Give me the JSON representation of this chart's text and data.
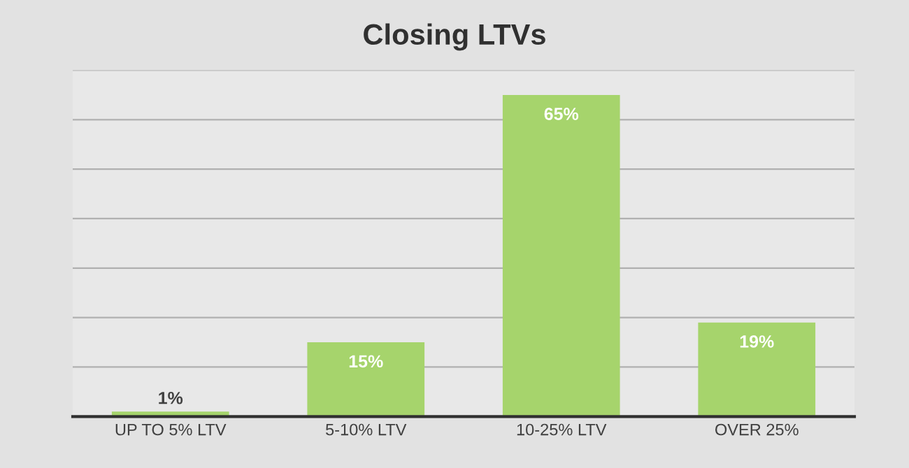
{
  "chart_data": {
    "type": "bar",
    "title": "Closing LTVs",
    "categories": [
      "UP TO 5% LTV",
      "5-10% LTV",
      "10-25% LTV",
      "OVER 25%"
    ],
    "values": [
      1,
      15,
      65,
      19
    ],
    "color": "#a6d46c",
    "value_labels": [
      "1%",
      "15%",
      "65%",
      "19%"
    ],
    "ylim": [
      0,
      70
    ],
    "yticks": [
      {
        "value": 0,
        "label": null
      },
      {
        "value": 10,
        "label": null
      },
      {
        "value": 20,
        "label": null
      },
      {
        "value": 30,
        "label": null
      },
      {
        "value": 40,
        "label": null
      },
      {
        "value": 50,
        "label": null
      },
      {
        "value": 60,
        "label": null
      },
      {
        "value": 70,
        "label": null
      }
    ],
    "tick_labels": "x",
    "grid": "y",
    "legend": false
  }
}
